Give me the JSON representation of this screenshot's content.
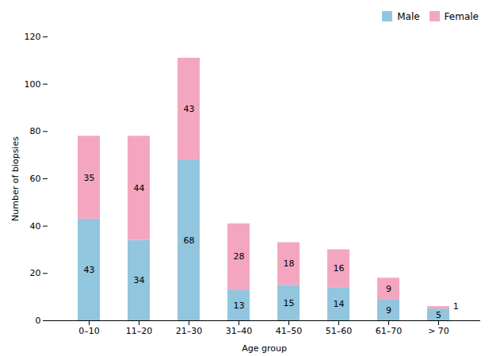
{
  "chart_data": {
    "type": "bar",
    "stacked": true,
    "categories": [
      "0–10",
      "11–20",
      "21–30",
      "31–40",
      "41–50",
      "51–60",
      "61–70",
      "> 70"
    ],
    "series": [
      {
        "name": "Male",
        "color": "#92C5DE",
        "values": [
          43,
          34,
          68,
          13,
          15,
          14,
          9,
          5
        ]
      },
      {
        "name": "Female",
        "color": "#F4A6C0",
        "values": [
          35,
          44,
          43,
          28,
          18,
          16,
          9,
          1
        ]
      }
    ],
    "xlabel": "Age group",
    "ylabel": "Number of biopsies",
    "ylim": [
      0,
      120
    ],
    "yticks": [
      0,
      20,
      40,
      60,
      80,
      100,
      120
    ],
    "grid": false,
    "legend": "upper right",
    "data_labels": true
  }
}
